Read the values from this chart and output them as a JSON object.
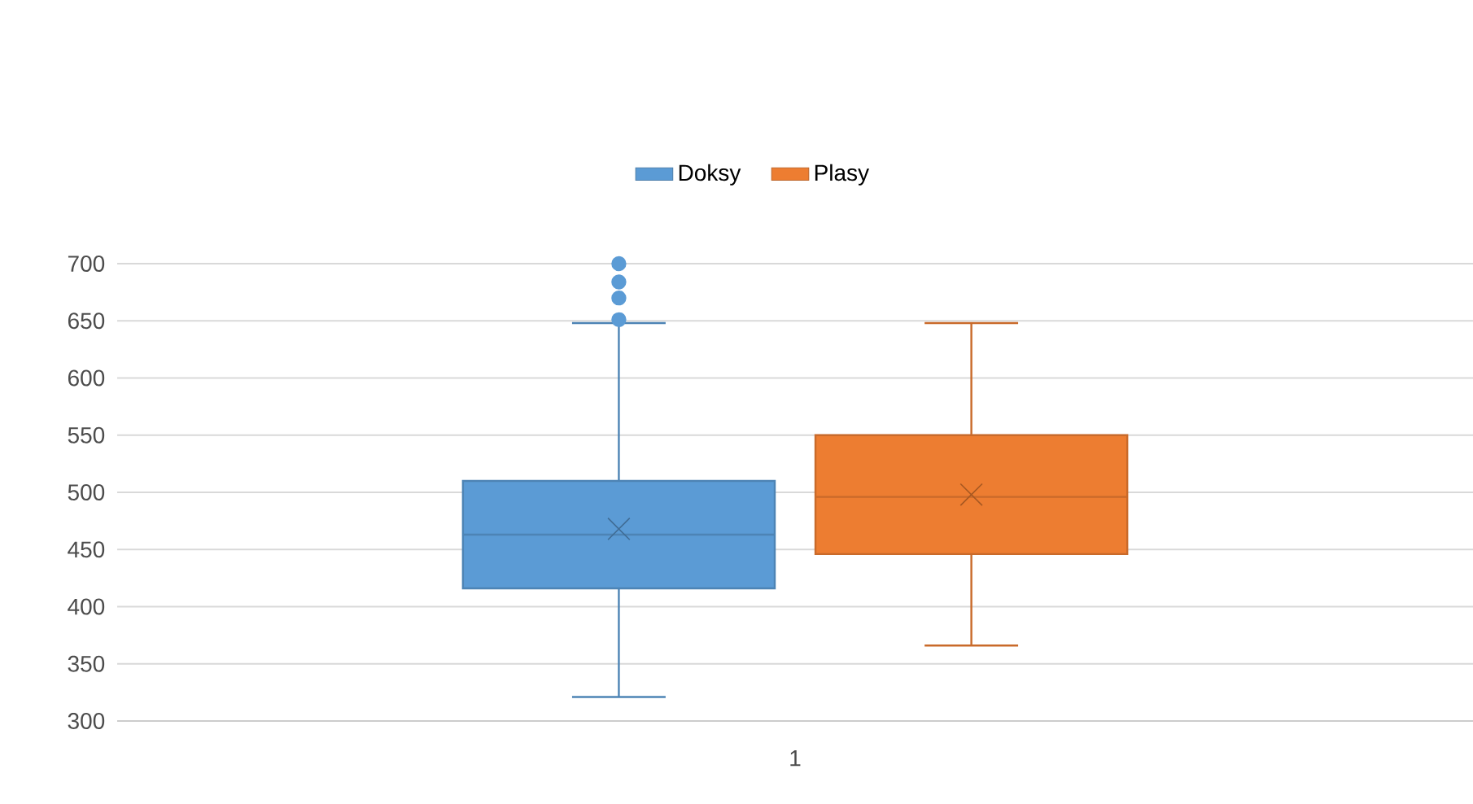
{
  "chart_data": {
    "type": "box",
    "categories": [
      "1"
    ],
    "series": [
      {
        "name": "Doksy",
        "color": "#5b9bd5",
        "boxes": [
          {
            "low": 321,
            "q1": 416,
            "median": 463,
            "q3": 510,
            "high": 648,
            "mean": 468,
            "outliers": [
              651,
              670,
              684,
              700
            ]
          }
        ]
      },
      {
        "name": "Plasy",
        "color": "#ed7d31",
        "boxes": [
          {
            "low": 366,
            "q1": 446,
            "median": 496,
            "q3": 550,
            "high": 648,
            "mean": 498
          }
        ]
      }
    ],
    "ylim": [
      300,
      700
    ],
    "yticks": [
      300,
      350,
      400,
      450,
      500,
      550,
      600,
      650,
      700
    ],
    "grid": "y",
    "legend": "top"
  }
}
